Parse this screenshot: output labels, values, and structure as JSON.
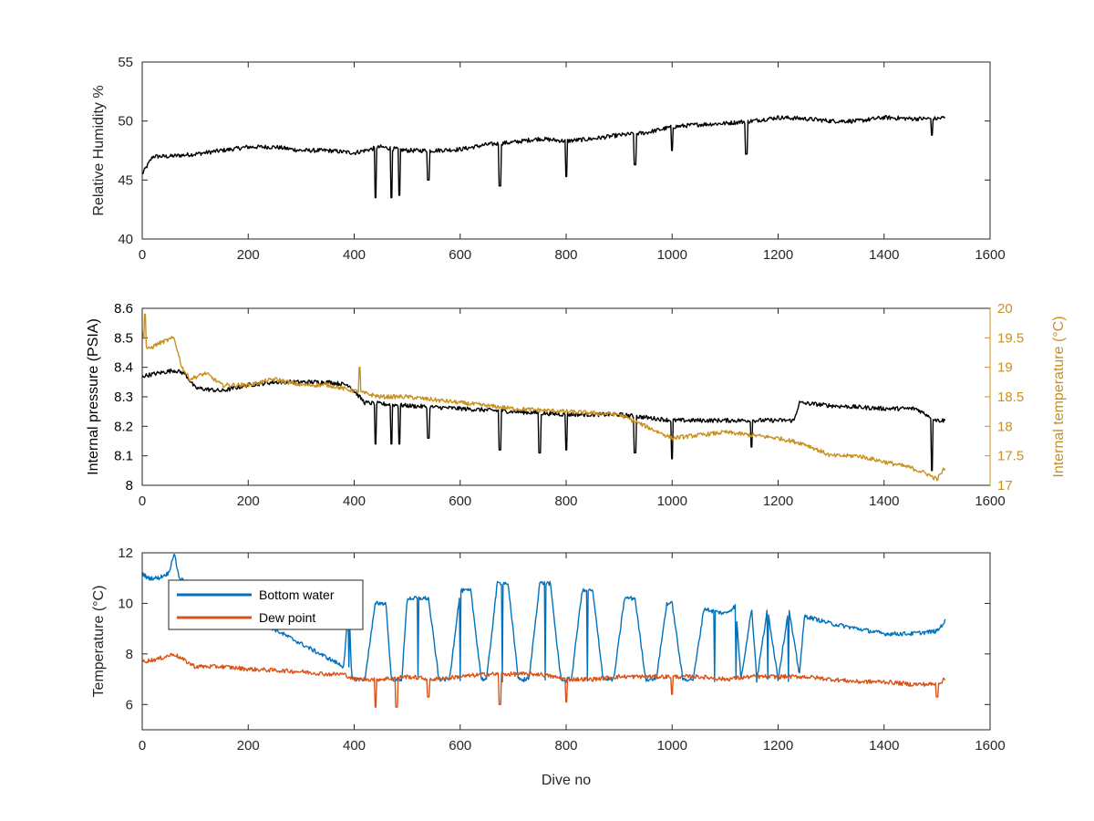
{
  "chart_data": [
    {
      "type": "line",
      "ylabel": "Relative Humidity %",
      "xlim": [
        0,
        1600
      ],
      "ylim": [
        40,
        55
      ],
      "xticks": [
        "0",
        "200",
        "400",
        "600",
        "800",
        "1000",
        "1200",
        "1400",
        "1600"
      ],
      "yticks": [
        "40",
        "45",
        "50",
        "55"
      ],
      "series": [
        {
          "color": "#000000",
          "x": [
            0,
            20,
            50,
            100,
            150,
            200,
            250,
            300,
            350,
            400,
            450,
            500,
            550,
            600,
            650,
            700,
            750,
            800,
            850,
            900,
            950,
            1000,
            1050,
            1100,
            1150,
            1200,
            1250,
            1300,
            1350,
            1400,
            1450,
            1500,
            1515
          ],
          "y": [
            45.5,
            47.0,
            47.0,
            47.2,
            47.5,
            47.8,
            47.8,
            47.5,
            47.5,
            47.3,
            47.8,
            47.5,
            47.5,
            47.6,
            48.0,
            48.2,
            48.5,
            48.3,
            48.5,
            48.8,
            49.0,
            49.5,
            49.7,
            49.8,
            50.0,
            50.3,
            50.2,
            50.0,
            50.0,
            50.3,
            50.2,
            50.2,
            50.3
          ],
          "spikes": [
            [
              440,
              43.5
            ],
            [
              470,
              43.5
            ],
            [
              485,
              43.7
            ],
            [
              540,
              45.0
            ],
            [
              675,
              44.5
            ],
            [
              800,
              45.3
            ],
            [
              930,
              46.3
            ],
            [
              1000,
              47.5
            ],
            [
              1140,
              47.2
            ],
            [
              1490,
              48.8
            ]
          ]
        }
      ]
    },
    {
      "type": "line",
      "ylabel": "Internal pressure (PSIA)",
      "y2label": "Internal temperature (°C)",
      "xlim": [
        0,
        1600
      ],
      "ylim": [
        8.0,
        8.6
      ],
      "y2lim": [
        17,
        20
      ],
      "xticks": [
        "0",
        "200",
        "400",
        "600",
        "800",
        "1000",
        "1200",
        "1400",
        "1600"
      ],
      "yticks": [
        "8",
        "8.1",
        "8.2",
        "8.3",
        "8.4",
        "8.5",
        "8.6"
      ],
      "y2ticks": [
        "17",
        "17.5",
        "18",
        "18.5",
        "19",
        "19.5",
        "20"
      ],
      "series": [
        {
          "axis": "left",
          "color": "#000000",
          "x": [
            0,
            30,
            60,
            80,
            100,
            150,
            200,
            250,
            300,
            350,
            390,
            420,
            500,
            600,
            700,
            800,
            900,
            950,
            1000,
            1100,
            1200,
            1230,
            1240,
            1300,
            1400,
            1460,
            1480,
            1500,
            1515
          ],
          "y": [
            8.37,
            8.38,
            8.39,
            8.38,
            8.33,
            8.32,
            8.34,
            8.35,
            8.35,
            8.35,
            8.34,
            8.28,
            8.27,
            8.26,
            8.25,
            8.24,
            8.24,
            8.23,
            8.22,
            8.22,
            8.22,
            8.22,
            8.28,
            8.27,
            8.26,
            8.26,
            8.24,
            8.22,
            8.22
          ],
          "spikes": [
            [
              440,
              8.14
            ],
            [
              470,
              8.14
            ],
            [
              485,
              8.14
            ],
            [
              540,
              8.16
            ],
            [
              675,
              8.12
            ],
            [
              750,
              8.11
            ],
            [
              800,
              8.12
            ],
            [
              930,
              8.11
            ],
            [
              1000,
              8.09
            ],
            [
              1150,
              8.13
            ],
            [
              1490,
              8.05
            ]
          ]
        },
        {
          "axis": "right",
          "color": "#C8901E",
          "x": [
            0,
            10,
            30,
            60,
            75,
            90,
            120,
            150,
            200,
            250,
            300,
            350,
            400,
            450,
            500,
            600,
            700,
            800,
            900,
            950,
            1000,
            1050,
            1100,
            1150,
            1200,
            1250,
            1300,
            1350,
            1400,
            1450,
            1480,
            1500,
            1515
          ],
          "y": [
            19.6,
            19.3,
            19.4,
            19.5,
            19.0,
            18.8,
            18.9,
            18.7,
            18.7,
            18.8,
            18.7,
            18.7,
            18.6,
            18.5,
            18.5,
            18.4,
            18.3,
            18.25,
            18.2,
            18.0,
            17.8,
            17.85,
            17.9,
            17.85,
            17.8,
            17.7,
            17.5,
            17.5,
            17.4,
            17.3,
            17.2,
            17.1,
            17.3
          ],
          "spikes": [
            [
              5,
              19.9
            ],
            [
              410,
              19.0
            ]
          ]
        }
      ]
    },
    {
      "type": "line",
      "xlabel": "Dive no",
      "ylabel": "Temperature (°C)",
      "xlim": [
        0,
        1600
      ],
      "ylim": [
        5,
        12
      ],
      "xticks": [
        "0",
        "200",
        "400",
        "600",
        "800",
        "1000",
        "1200",
        "1400",
        "1600"
      ],
      "yticks": [
        "6",
        "8",
        "10",
        "12"
      ],
      "legend": {
        "location": "top-left",
        "entries": [
          "Bottom water",
          "Dew point"
        ]
      },
      "series": [
        {
          "name": "Bottom water",
          "color": "#0072BD",
          "x": [
            0,
            10,
            30,
            50,
            60,
            70,
            380,
            390,
            395,
            400,
            420,
            440,
            460,
            470,
            490,
            500,
            540,
            560,
            580,
            600,
            620,
            640,
            650,
            670,
            690,
            710,
            730,
            750,
            770,
            790,
            810,
            830,
            850,
            870,
            890,
            910,
            930,
            950,
            970,
            990,
            1000,
            1020,
            1040,
            1060,
            1075,
            1100,
            1120,
            1130,
            1150,
            1160,
            1180,
            1200,
            1220,
            1240,
            1250,
            1300,
            1350,
            1400,
            1450,
            1500,
            1515
          ],
          "y": [
            11.2,
            11.0,
            11.0,
            11.2,
            12.0,
            11.0,
            7.5,
            10.0,
            7.2,
            7.0,
            7.0,
            10.0,
            10.0,
            7.0,
            7.0,
            10.2,
            10.2,
            7.0,
            7.0,
            10.5,
            10.5,
            7.0,
            7.0,
            10.8,
            10.8,
            7.0,
            7.0,
            10.8,
            10.8,
            7.0,
            7.0,
            10.5,
            10.5,
            7.0,
            7.0,
            10.2,
            10.2,
            7.0,
            7.0,
            10.0,
            10.0,
            7.0,
            7.0,
            9.8,
            9.7,
            9.6,
            9.9,
            7.0,
            9.8,
            7.0,
            9.8,
            7.0,
            9.8,
            7.2,
            9.5,
            9.2,
            9.0,
            8.8,
            8.8,
            8.9,
            9.3
          ],
          "drops": [
            [
              390,
              7.5
            ],
            [
              420,
              7.0
            ],
            [
              450,
              7.0
            ],
            [
              480,
              7.0
            ],
            [
              520,
              7.0
            ],
            [
              560,
              7.0
            ],
            [
              600,
              7.0
            ],
            [
              640,
              7.0
            ],
            [
              680,
              7.0
            ],
            [
              720,
              7.0
            ],
            [
              760,
              7.0
            ],
            [
              800,
              7.0
            ],
            [
              840,
              7.0
            ],
            [
              880,
              7.0
            ],
            [
              920,
              7.0
            ],
            [
              960,
              7.0
            ],
            [
              1000,
              7.0
            ],
            [
              1040,
              7.0
            ],
            [
              1080,
              7.0
            ],
            [
              1120,
              7.0
            ],
            [
              1150,
              7.0
            ],
            [
              1160,
              7.0
            ],
            [
              1180,
              7.0
            ],
            [
              1200,
              7.0
            ],
            [
              1220,
              7.0
            ]
          ]
        },
        {
          "name": "Dew point",
          "color": "#D95319",
          "x": [
            0,
            30,
            60,
            75,
            100,
            150,
            200,
            250,
            300,
            350,
            380,
            400,
            450,
            500,
            550,
            600,
            650,
            700,
            750,
            800,
            850,
            900,
            950,
            1000,
            1050,
            1100,
            1150,
            1200,
            1250,
            1300,
            1350,
            1400,
            1450,
            1500,
            1515
          ],
          "y": [
            7.7,
            7.8,
            8.0,
            7.8,
            7.5,
            7.5,
            7.4,
            7.35,
            7.3,
            7.2,
            7.2,
            7.0,
            7.0,
            7.1,
            7.0,
            7.1,
            7.2,
            7.2,
            7.2,
            7.0,
            7.0,
            7.1,
            7.1,
            7.1,
            7.1,
            7.0,
            7.1,
            7.1,
            7.1,
            7.0,
            6.9,
            6.9,
            6.8,
            6.8,
            7.0
          ],
          "spikes": [
            [
              440,
              5.9
            ],
            [
              480,
              5.9
            ],
            [
              540,
              6.3
            ],
            [
              675,
              6.0
            ],
            [
              800,
              6.1
            ],
            [
              1000,
              6.4
            ],
            [
              1500,
              6.3
            ]
          ]
        }
      ]
    }
  ]
}
